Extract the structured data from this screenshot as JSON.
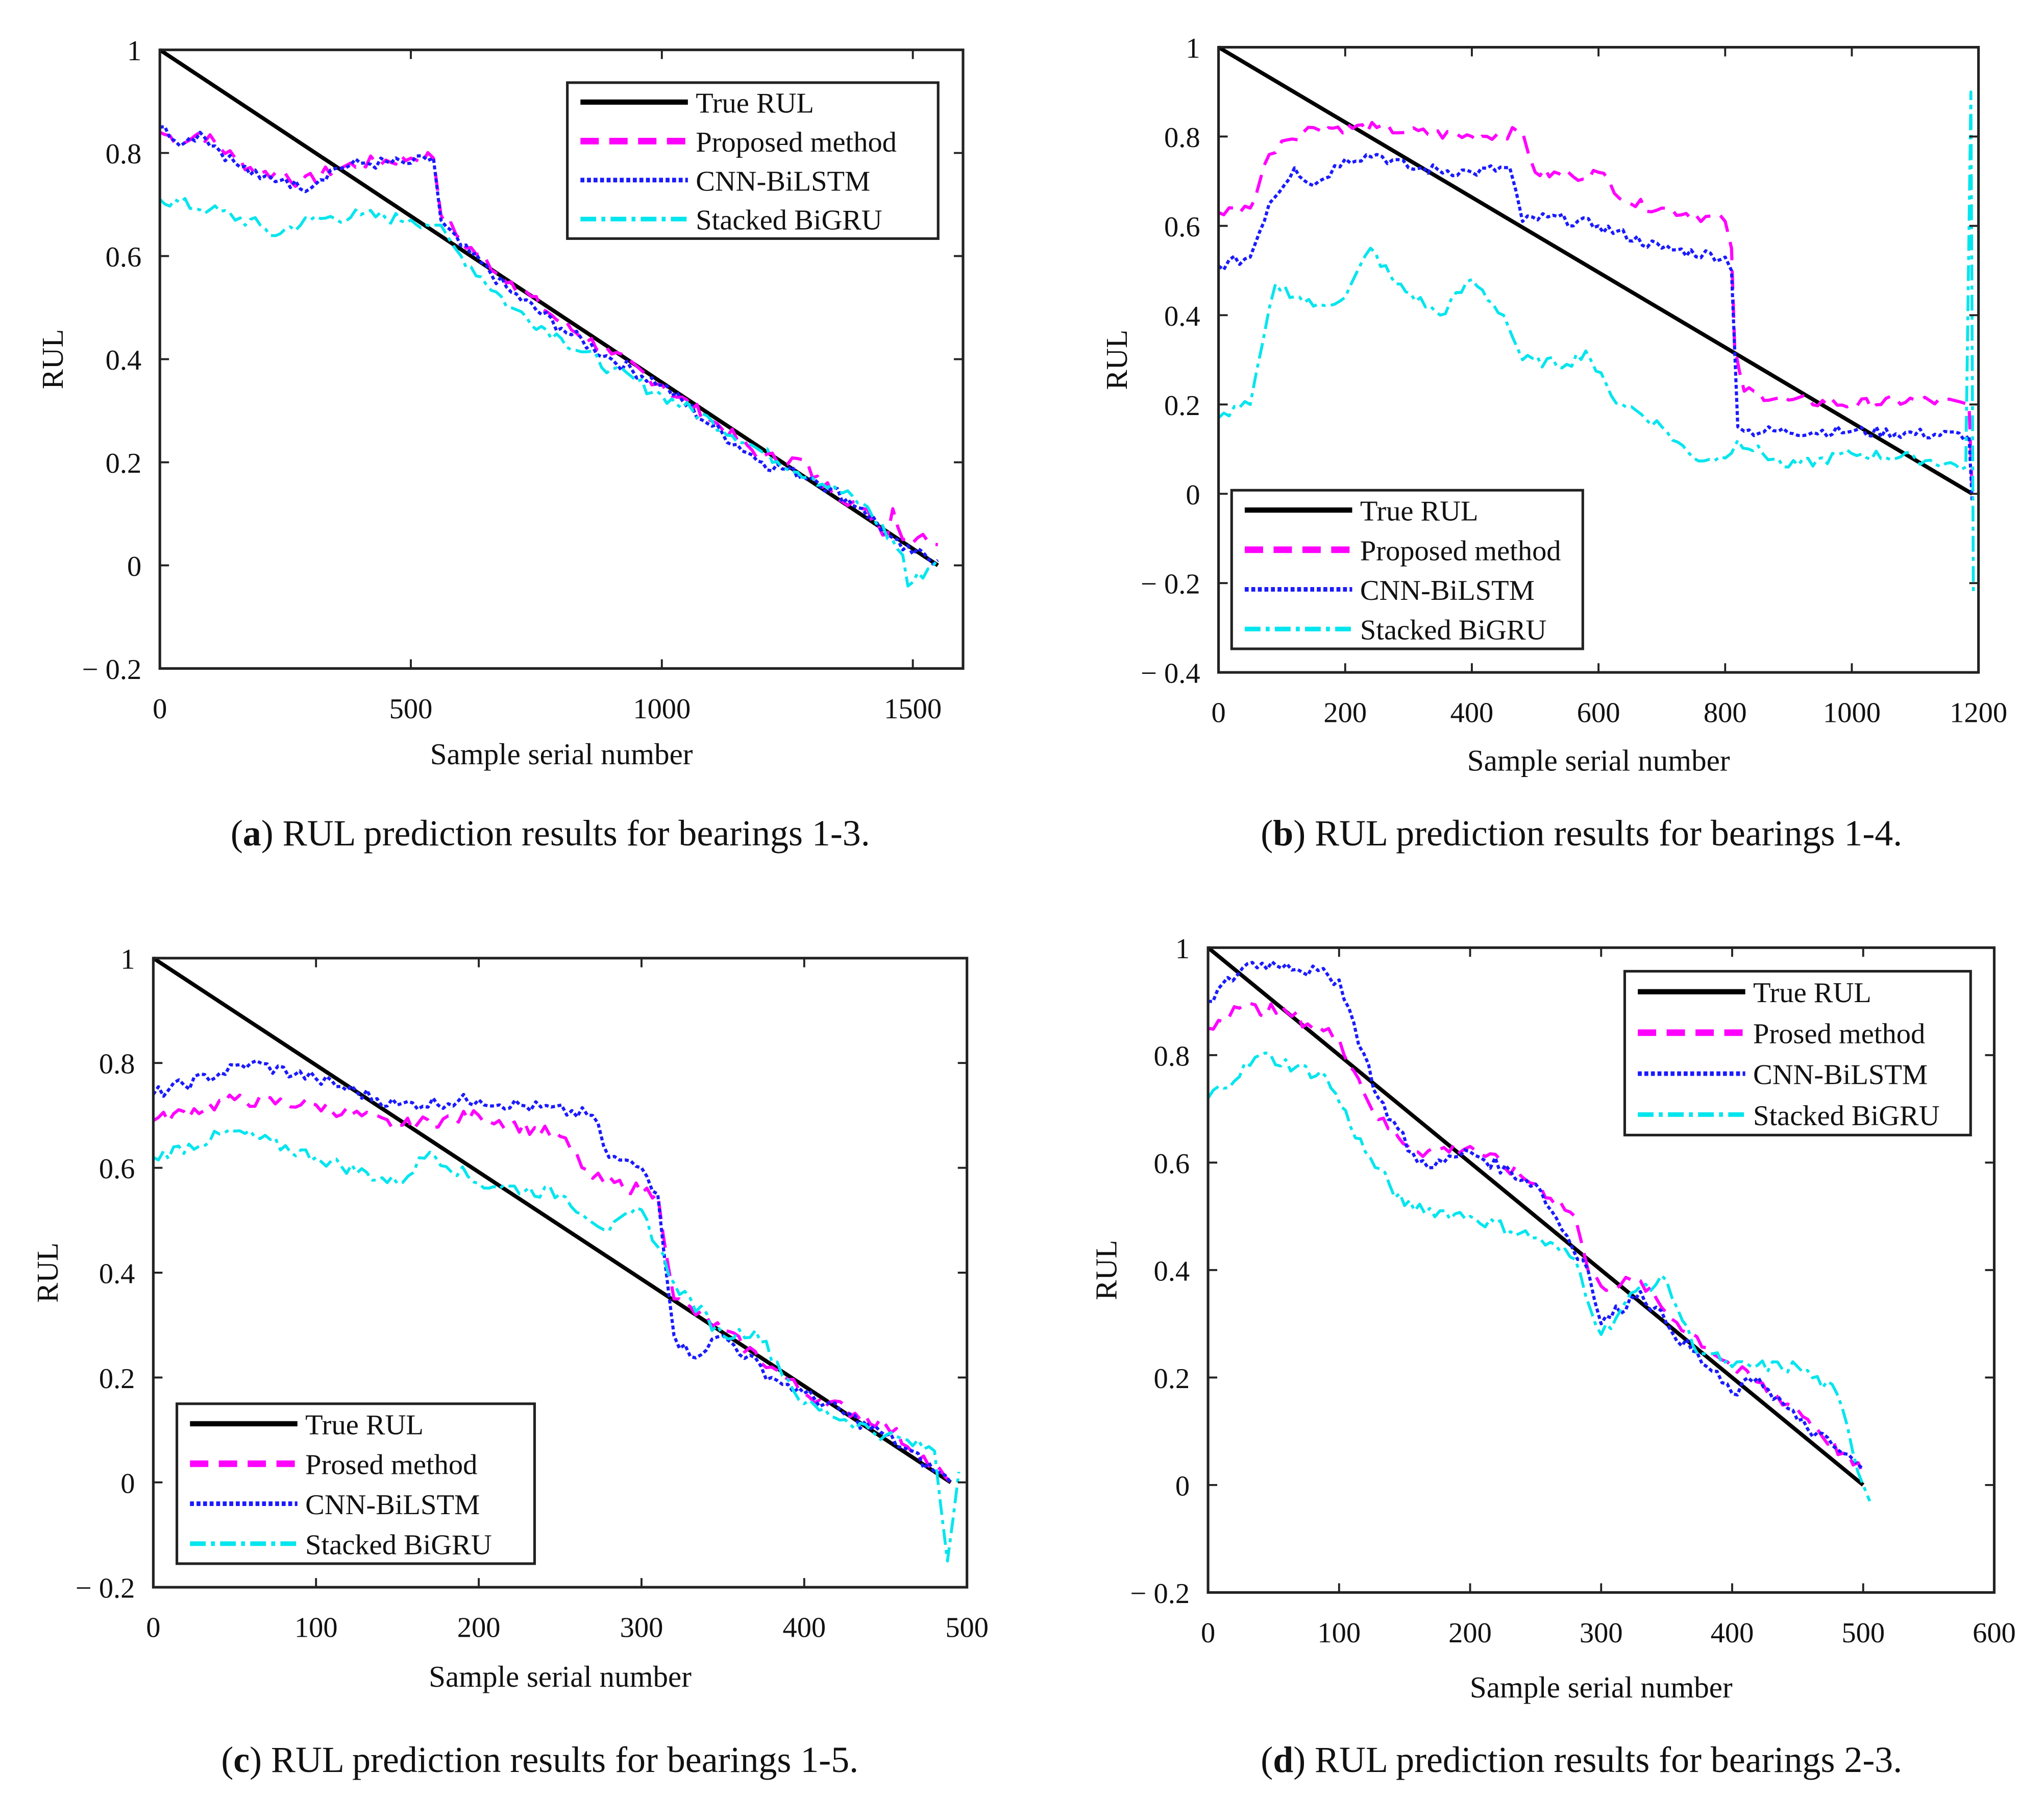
{
  "chart_data": [
    {
      "type": "line",
      "id": "a",
      "caption_letter": "a",
      "caption_text": ") RUL prediction results for bearings 1-3.",
      "caption_open": "(",
      "xlabel": "Sample serial number",
      "ylabel": "RUL",
      "xlim": [
        0,
        1600
      ],
      "ylim": [
        -0.2,
        1
      ],
      "xticks": [
        0,
        500,
        1000,
        1500
      ],
      "xtick_labels": [
        "0",
        "500",
        "1000",
        "1500"
      ],
      "yticks": [
        -0.2,
        0,
        0.2,
        0.4,
        0.6,
        0.8,
        1
      ],
      "ytick_labels": [
        "− 0.2",
        "0",
        "0.2",
        "0.4",
        "0.6",
        "0.8",
        "1"
      ],
      "legend_position": "top-right",
      "series": [
        {
          "name": "True RUL",
          "color": "#000000",
          "style": "solid",
          "x": [
            0,
            1550
          ],
          "y": [
            1,
            0
          ]
        },
        {
          "name": "Proposed method",
          "color": "#ff00ff",
          "style": "dashed",
          "x": [
            0,
            50,
            80,
            150,
            200,
            250,
            280,
            350,
            400,
            500,
            545,
            560,
            600,
            700,
            800,
            900,
            1000,
            1100,
            1200,
            1290,
            1300,
            1400,
            1450,
            1460,
            1480,
            1520,
            1550
          ],
          "y": [
            0.84,
            0.82,
            0.84,
            0.79,
            0.76,
            0.76,
            0.74,
            0.77,
            0.78,
            0.79,
            0.79,
            0.68,
            0.63,
            0.55,
            0.47,
            0.41,
            0.35,
            0.28,
            0.21,
            0.2,
            0.17,
            0.11,
            0.06,
            0.11,
            0.05,
            0.06,
            0.04
          ]
        },
        {
          "name": "CNN-BiLSTM",
          "color": "#1a1aff",
          "style": "dotted",
          "x": [
            0,
            50,
            80,
            150,
            200,
            250,
            280,
            350,
            400,
            500,
            545,
            560,
            600,
            700,
            800,
            900,
            1000,
            1100,
            1200,
            1300,
            1400,
            1450,
            1480,
            1550
          ],
          "y": [
            0.85,
            0.82,
            0.84,
            0.78,
            0.75,
            0.75,
            0.73,
            0.77,
            0.78,
            0.78,
            0.79,
            0.67,
            0.62,
            0.53,
            0.46,
            0.4,
            0.35,
            0.27,
            0.2,
            0.17,
            0.11,
            0.06,
            0.03,
            0.01
          ]
        },
        {
          "name": "Stacked BiGRU",
          "color": "#00e5ee",
          "style": "dashdot",
          "x": [
            0,
            100,
            200,
            220,
            300,
            400,
            500,
            550,
            600,
            700,
            800,
            900,
            1000,
            1100,
            1200,
            1300,
            1400,
            1480,
            1490,
            1550
          ],
          "y": [
            0.71,
            0.69,
            0.66,
            0.64,
            0.67,
            0.68,
            0.67,
            0.66,
            0.6,
            0.5,
            0.44,
            0.38,
            0.33,
            0.28,
            0.22,
            0.17,
            0.12,
            0.02,
            -0.04,
            0.01
          ]
        }
      ]
    },
    {
      "type": "line",
      "id": "b",
      "caption_letter": "b",
      "caption_text": ") RUL prediction results for bearings 1-4.",
      "caption_open": "(",
      "xlabel": "Sample serial number",
      "ylabel": "RUL",
      "xlim": [
        0,
        1200
      ],
      "ylim": [
        -0.4,
        1
      ],
      "xticks": [
        0,
        200,
        400,
        600,
        800,
        1000,
        1200
      ],
      "xtick_labels": [
        "0",
        "200",
        "400",
        "600",
        "800",
        "1000",
        "1200"
      ],
      "yticks": [
        -0.4,
        -0.2,
        0,
        0.2,
        0.4,
        0.6,
        0.8,
        1
      ],
      "ytick_labels": [
        "− 0.4",
        "− 0.2",
        "0",
        "0.2",
        "0.4",
        "0.6",
        "0.8",
        "1"
      ],
      "legend_position": "bottom-left",
      "series": [
        {
          "name": "True RUL",
          "color": "#000000",
          "style": "solid",
          "x": [
            0,
            1190
          ],
          "y": [
            1,
            0
          ]
        },
        {
          "name": "Proposed method",
          "color": "#ff00ff",
          "style": "dashed",
          "x": [
            0,
            50,
            80,
            100,
            150,
            250,
            300,
            400,
            480,
            500,
            560,
            600,
            650,
            700,
            800,
            810,
            815,
            830,
            900,
            1000,
            1100,
            1185,
            1190
          ],
          "y": [
            0.63,
            0.64,
            0.76,
            0.79,
            0.82,
            0.82,
            0.81,
            0.8,
            0.81,
            0.72,
            0.71,
            0.72,
            0.65,
            0.64,
            0.61,
            0.55,
            0.33,
            0.23,
            0.21,
            0.2,
            0.21,
            0.2,
            0.0
          ]
        },
        {
          "name": "CNN-BiLSTM",
          "color": "#1a1aff",
          "style": "dotted",
          "x": [
            0,
            50,
            80,
            120,
            150,
            200,
            250,
            300,
            400,
            460,
            480,
            520,
            600,
            700,
            800,
            810,
            820,
            830,
            1000,
            1185,
            1190
          ],
          "y": [
            0.51,
            0.53,
            0.65,
            0.73,
            0.69,
            0.75,
            0.76,
            0.73,
            0.72,
            0.73,
            0.61,
            0.62,
            0.6,
            0.55,
            0.53,
            0.5,
            0.15,
            0.14,
            0.14,
            0.13,
            -0.02
          ]
        },
        {
          "name": "Stacked BiGRU",
          "color": "#00e5ee",
          "style": "dashdot",
          "x": [
            0,
            50,
            70,
            90,
            150,
            200,
            240,
            280,
            350,
            400,
            450,
            480,
            550,
            580,
            620,
            700,
            750,
            800,
            820,
            900,
            1000,
            1100,
            1180,
            1188,
            1192
          ],
          "y": [
            0.17,
            0.2,
            0.34,
            0.47,
            0.42,
            0.44,
            0.55,
            0.47,
            0.4,
            0.48,
            0.4,
            0.3,
            0.29,
            0.32,
            0.22,
            0.15,
            0.08,
            0.08,
            0.12,
            0.06,
            0.09,
            0.08,
            0.06,
            0.9,
            -0.22
          ]
        }
      ]
    },
    {
      "type": "line",
      "id": "c",
      "caption_letter": "c",
      "caption_text": ") RUL prediction results for bearings 1-5.",
      "caption_open": "(",
      "xlabel": "Sample serial number",
      "ylabel": "RUL",
      "xlim": [
        0,
        500
      ],
      "ylim": [
        -0.2,
        1
      ],
      "xticks": [
        0,
        100,
        200,
        300,
        400,
        500
      ],
      "xtick_labels": [
        "0",
        "100",
        "200",
        "300",
        "400",
        "500"
      ],
      "yticks": [
        -0.2,
        0,
        0.2,
        0.4,
        0.6,
        0.8,
        1
      ],
      "ytick_labels": [
        "− 0.2",
        "0",
        "0.2",
        "0.4",
        "0.6",
        "0.8",
        "1"
      ],
      "legend_position": "bottom-left",
      "series": [
        {
          "name": "True RUL",
          "color": "#000000",
          "style": "solid",
          "x": [
            0,
            490
          ],
          "y": [
            1,
            0
          ]
        },
        {
          "name": "Prosed method",
          "color": "#ff00ff",
          "style": "dashed",
          "x": [
            0,
            50,
            100,
            150,
            200,
            250,
            270,
            310,
            320,
            350,
            380,
            400,
            450,
            490
          ],
          "y": [
            0.69,
            0.73,
            0.72,
            0.68,
            0.7,
            0.66,
            0.58,
            0.55,
            0.35,
            0.29,
            0.22,
            0.17,
            0.11,
            0.0
          ]
        },
        {
          "name": "CNN-BiLSTM",
          "color": "#1a1aff",
          "style": "dotted",
          "x": [
            0,
            60,
            100,
            150,
            200,
            270,
            280,
            300,
            310,
            320,
            330,
            350,
            380,
            400,
            450,
            490
          ],
          "y": [
            0.74,
            0.8,
            0.77,
            0.72,
            0.73,
            0.7,
            0.62,
            0.6,
            0.55,
            0.28,
            0.24,
            0.28,
            0.2,
            0.17,
            0.09,
            0.0
          ]
        },
        {
          "name": "Stacked BiGRU",
          "color": "#00e5ee",
          "style": "dashdot",
          "x": [
            0,
            50,
            100,
            150,
            170,
            200,
            250,
            280,
            300,
            320,
            350,
            370,
            400,
            450,
            480,
            488,
            495
          ],
          "y": [
            0.62,
            0.67,
            0.62,
            0.57,
            0.63,
            0.57,
            0.55,
            0.48,
            0.52,
            0.38,
            0.28,
            0.29,
            0.15,
            0.09,
            0.06,
            -0.15,
            0.02
          ]
        }
      ]
    },
    {
      "type": "line",
      "id": "d",
      "caption_letter": "d",
      "caption_text": ") RUL prediction results for bearings 2-3.",
      "caption_open": "(",
      "xlabel": "Sample serial number",
      "ylabel": "RUL",
      "xlim": [
        0,
        600
      ],
      "ylim": [
        -0.2,
        1
      ],
      "xticks": [
        0,
        100,
        200,
        300,
        400,
        500,
        600
      ],
      "xtick_labels": [
        "0",
        "100",
        "200",
        "300",
        "400",
        "500",
        "600"
      ],
      "yticks": [
        -0.2,
        0,
        0.2,
        0.4,
        0.6,
        0.8,
        1
      ],
      "ytick_labels": [
        "− 0.2",
        "0",
        "0.2",
        "0.4",
        "0.6",
        "0.8",
        "1"
      ],
      "legend_position": "top-right",
      "series": [
        {
          "name": "True RUL",
          "color": "#000000",
          "style": "solid",
          "x": [
            0,
            500
          ],
          "y": [
            1,
            0
          ]
        },
        {
          "name": "Prosed method",
          "color": "#ff00ff",
          "style": "dashed",
          "x": [
            0,
            20,
            60,
            100,
            130,
            160,
            200,
            250,
            280,
            290,
            300,
            330,
            350,
            400,
            450,
            500
          ],
          "y": [
            0.85,
            0.89,
            0.88,
            0.83,
            0.68,
            0.62,
            0.63,
            0.56,
            0.5,
            0.4,
            0.37,
            0.38,
            0.32,
            0.22,
            0.14,
            0.02
          ]
        },
        {
          "name": "CNN-BiLSTM",
          "color": "#1a1aff",
          "style": "dotted",
          "x": [
            0,
            30,
            60,
            100,
            130,
            160,
            180,
            200,
            250,
            290,
            300,
            330,
            350,
            400,
            420,
            450,
            500
          ],
          "y": [
            0.9,
            0.97,
            0.97,
            0.94,
            0.72,
            0.6,
            0.6,
            0.62,
            0.56,
            0.4,
            0.3,
            0.36,
            0.3,
            0.17,
            0.2,
            0.12,
            0.03
          ]
        },
        {
          "name": "Stacked BiGRU",
          "color": "#00e5ee",
          "style": "dashdot",
          "x": [
            0,
            40,
            90,
            120,
            150,
            200,
            250,
            280,
            300,
            330,
            350,
            370,
            400,
            450,
            480,
            500,
            505
          ],
          "y": [
            0.72,
            0.8,
            0.76,
            0.62,
            0.52,
            0.5,
            0.46,
            0.42,
            0.28,
            0.37,
            0.38,
            0.26,
            0.22,
            0.22,
            0.17,
            0.0,
            -0.03
          ]
        }
      ]
    }
  ]
}
